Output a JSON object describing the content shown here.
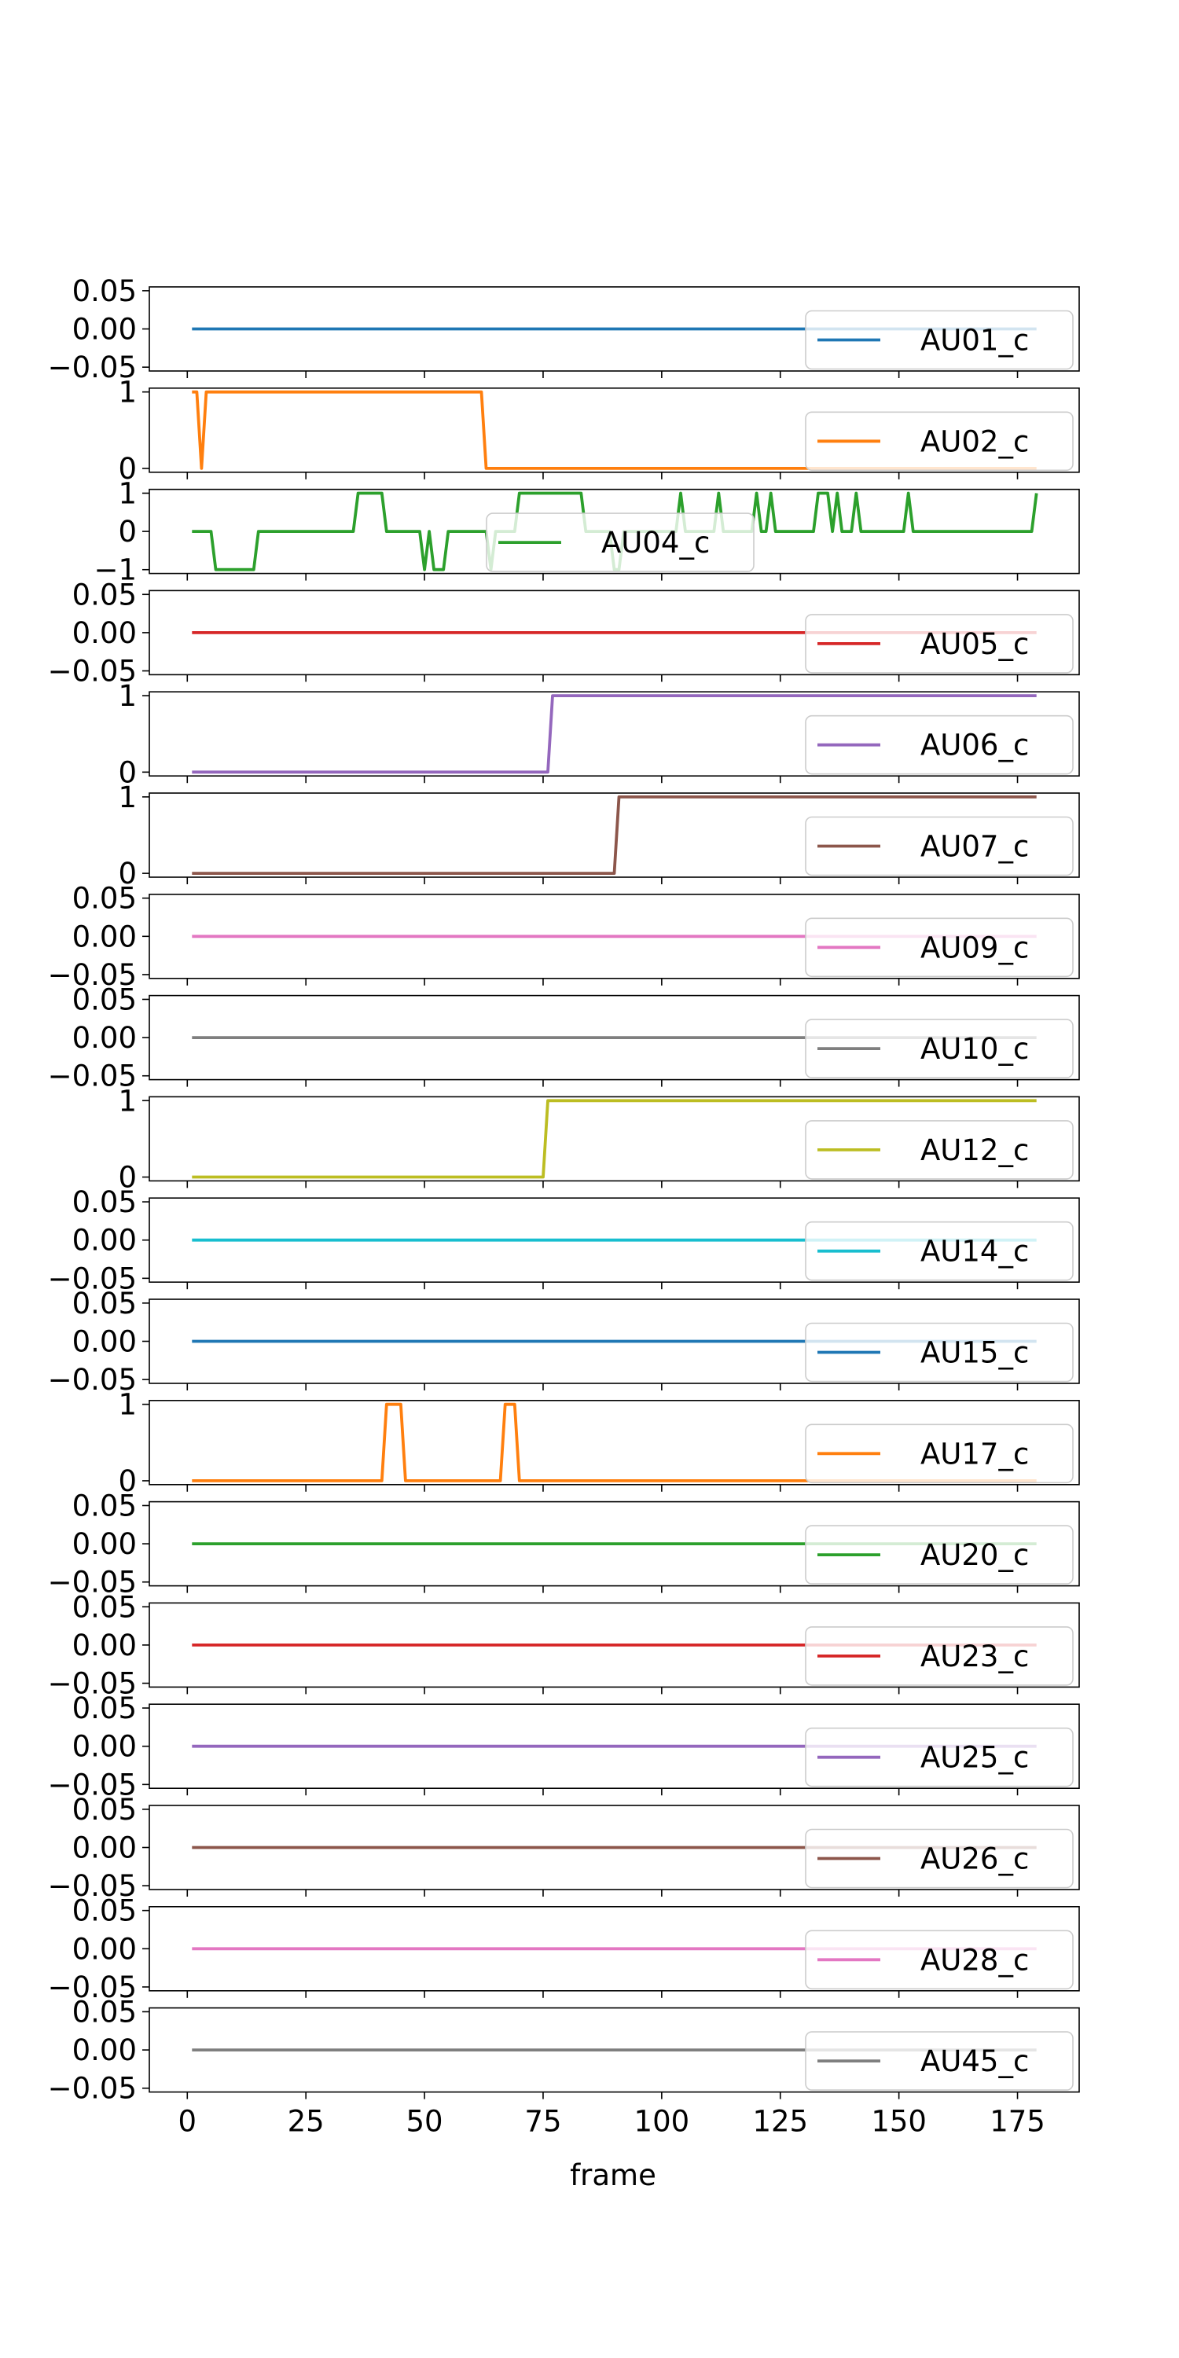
{
  "chart_data": {
    "type": "line",
    "xlabel": "frame",
    "xlim": [
      -8,
      188
    ],
    "xticks": [
      0,
      25,
      50,
      75,
      100,
      125,
      150,
      175
    ],
    "xtick_labels": [
      "0",
      "25",
      "50",
      "75",
      "100",
      "125",
      "150",
      "175"
    ],
    "x_domain": [
      1,
      179
    ],
    "subplots": [
      {
        "name": "AU01_c",
        "color": "#1f77b4",
        "ylim": [
          -0.055,
          0.055
        ],
        "yticks": [
          -0.05,
          0,
          0.05
        ],
        "ytick_labels": [
          "−0.05",
          "0.00",
          "0.05"
        ],
        "legend_loc": "right",
        "points": [
          [
            1,
            0
          ],
          [
            179,
            0
          ]
        ]
      },
      {
        "name": "AU02_c",
        "color": "#ff7f0e",
        "ylim": [
          -0.05,
          1.05
        ],
        "yticks": [
          0,
          1
        ],
        "ytick_labels": [
          "0",
          "1"
        ],
        "legend_loc": "right",
        "points": [
          [
            1,
            1
          ],
          [
            2,
            1
          ],
          [
            3,
            0
          ],
          [
            4,
            1
          ],
          [
            62,
            1
          ],
          [
            63,
            0
          ],
          [
            179,
            0
          ]
        ]
      },
      {
        "name": "AU04_c",
        "color": "#2ca02c",
        "ylim": [
          -1.1,
          1.1
        ],
        "yticks": [
          -1,
          0,
          1
        ],
        "ytick_labels": [
          "−1",
          "0",
          "1"
        ],
        "legend_loc": "center",
        "points": [
          [
            1,
            0
          ],
          [
            5,
            0
          ],
          [
            6,
            -1
          ],
          [
            14,
            -1
          ],
          [
            15,
            0
          ],
          [
            35,
            0
          ],
          [
            36,
            1
          ],
          [
            41,
            1
          ],
          [
            42,
            0
          ],
          [
            49,
            0
          ],
          [
            50,
            -1
          ],
          [
            51,
            0
          ],
          [
            52,
            -1
          ],
          [
            54,
            -1
          ],
          [
            55,
            0
          ],
          [
            63,
            0
          ],
          [
            64,
            -1
          ],
          [
            65,
            0
          ],
          [
            69,
            0
          ],
          [
            70,
            1
          ],
          [
            83,
            1
          ],
          [
            84,
            0
          ],
          [
            89,
            0
          ],
          [
            90,
            -1
          ],
          [
            91,
            -1
          ],
          [
            92,
            0
          ],
          [
            103,
            0
          ],
          [
            104,
            1
          ],
          [
            105,
            0
          ],
          [
            111,
            0
          ],
          [
            112,
            1
          ],
          [
            113,
            0
          ],
          [
            119,
            0
          ],
          [
            120,
            1
          ],
          [
            121,
            0
          ],
          [
            122,
            0
          ],
          [
            123,
            1
          ],
          [
            124,
            0
          ],
          [
            132,
            0
          ],
          [
            133,
            1
          ],
          [
            135,
            1
          ],
          [
            136,
            0
          ],
          [
            137,
            1
          ],
          [
            138,
            0
          ],
          [
            140,
            0
          ],
          [
            141,
            1
          ],
          [
            142,
            0
          ],
          [
            151,
            0
          ],
          [
            152,
            1
          ],
          [
            153,
            0
          ],
          [
            178,
            0
          ],
          [
            179,
            1
          ]
        ]
      },
      {
        "name": "AU05_c",
        "color": "#d62728",
        "ylim": [
          -0.055,
          0.055
        ],
        "yticks": [
          -0.05,
          0,
          0.05
        ],
        "ytick_labels": [
          "−0.05",
          "0.00",
          "0.05"
        ],
        "legend_loc": "right",
        "points": [
          [
            1,
            0
          ],
          [
            179,
            0
          ]
        ]
      },
      {
        "name": "AU06_c",
        "color": "#9467bd",
        "ylim": [
          -0.05,
          1.05
        ],
        "yticks": [
          0,
          1
        ],
        "ytick_labels": [
          "0",
          "1"
        ],
        "legend_loc": "right",
        "points": [
          [
            1,
            0
          ],
          [
            76,
            0
          ],
          [
            77,
            1
          ],
          [
            179,
            1
          ]
        ]
      },
      {
        "name": "AU07_c",
        "color": "#8c564b",
        "ylim": [
          -0.05,
          1.05
        ],
        "yticks": [
          0,
          1
        ],
        "ytick_labels": [
          "0",
          "1"
        ],
        "legend_loc": "right",
        "points": [
          [
            1,
            0
          ],
          [
            90,
            0
          ],
          [
            91,
            1
          ],
          [
            179,
            1
          ]
        ]
      },
      {
        "name": "AU09_c",
        "color": "#e377c2",
        "ylim": [
          -0.055,
          0.055
        ],
        "yticks": [
          -0.05,
          0,
          0.05
        ],
        "ytick_labels": [
          "−0.05",
          "0.00",
          "0.05"
        ],
        "legend_loc": "right",
        "points": [
          [
            1,
            0
          ],
          [
            179,
            0
          ]
        ]
      },
      {
        "name": "AU10_c",
        "color": "#7f7f7f",
        "ylim": [
          -0.055,
          0.055
        ],
        "yticks": [
          -0.05,
          0,
          0.05
        ],
        "ytick_labels": [
          "−0.05",
          "0.00",
          "0.05"
        ],
        "legend_loc": "right",
        "points": [
          [
            1,
            0
          ],
          [
            179,
            0
          ]
        ]
      },
      {
        "name": "AU12_c",
        "color": "#bcbd22",
        "ylim": [
          -0.05,
          1.05
        ],
        "yticks": [
          0,
          1
        ],
        "ytick_labels": [
          "0",
          "1"
        ],
        "legend_loc": "right",
        "points": [
          [
            1,
            0
          ],
          [
            75,
            0
          ],
          [
            76,
            1
          ],
          [
            179,
            1
          ]
        ]
      },
      {
        "name": "AU14_c",
        "color": "#17becf",
        "ylim": [
          -0.055,
          0.055
        ],
        "yticks": [
          -0.05,
          0,
          0.05
        ],
        "ytick_labels": [
          "−0.05",
          "0.00",
          "0.05"
        ],
        "legend_loc": "right",
        "points": [
          [
            1,
            0
          ],
          [
            179,
            0
          ]
        ]
      },
      {
        "name": "AU15_c",
        "color": "#1f77b4",
        "ylim": [
          -0.055,
          0.055
        ],
        "yticks": [
          -0.05,
          0,
          0.05
        ],
        "ytick_labels": [
          "−0.05",
          "0.00",
          "0.05"
        ],
        "legend_loc": "right",
        "points": [
          [
            1,
            0
          ],
          [
            179,
            0
          ]
        ]
      },
      {
        "name": "AU17_c",
        "color": "#ff7f0e",
        "ylim": [
          -0.05,
          1.05
        ],
        "yticks": [
          0,
          1
        ],
        "ytick_labels": [
          "0",
          "1"
        ],
        "legend_loc": "right",
        "points": [
          [
            1,
            0
          ],
          [
            41,
            0
          ],
          [
            42,
            1
          ],
          [
            45,
            1
          ],
          [
            46,
            0
          ],
          [
            66,
            0
          ],
          [
            67,
            1
          ],
          [
            69,
            1
          ],
          [
            70,
            0
          ],
          [
            179,
            0
          ]
        ]
      },
      {
        "name": "AU20_c",
        "color": "#2ca02c",
        "ylim": [
          -0.055,
          0.055
        ],
        "yticks": [
          -0.05,
          0,
          0.05
        ],
        "ytick_labels": [
          "−0.05",
          "0.00",
          "0.05"
        ],
        "legend_loc": "right",
        "points": [
          [
            1,
            0
          ],
          [
            179,
            0
          ]
        ]
      },
      {
        "name": "AU23_c",
        "color": "#d62728",
        "ylim": [
          -0.055,
          0.055
        ],
        "yticks": [
          -0.05,
          0,
          0.05
        ],
        "ytick_labels": [
          "−0.05",
          "0.00",
          "0.05"
        ],
        "legend_loc": "right",
        "points": [
          [
            1,
            0
          ],
          [
            179,
            0
          ]
        ]
      },
      {
        "name": "AU25_c",
        "color": "#9467bd",
        "ylim": [
          -0.055,
          0.055
        ],
        "yticks": [
          -0.05,
          0,
          0.05
        ],
        "ytick_labels": [
          "−0.05",
          "0.00",
          "0.05"
        ],
        "legend_loc": "right",
        "points": [
          [
            1,
            0
          ],
          [
            179,
            0
          ]
        ]
      },
      {
        "name": "AU26_c",
        "color": "#8c564b",
        "ylim": [
          -0.055,
          0.055
        ],
        "yticks": [
          -0.05,
          0,
          0.05
        ],
        "ytick_labels": [
          "−0.05",
          "0.00",
          "0.05"
        ],
        "legend_loc": "right",
        "points": [
          [
            1,
            0
          ],
          [
            179,
            0
          ]
        ]
      },
      {
        "name": "AU28_c",
        "color": "#e377c2",
        "ylim": [
          -0.055,
          0.055
        ],
        "yticks": [
          -0.05,
          0,
          0.05
        ],
        "ytick_labels": [
          "−0.05",
          "0.00",
          "0.05"
        ],
        "legend_loc": "right",
        "points": [
          [
            1,
            0
          ],
          [
            179,
            0
          ]
        ]
      },
      {
        "name": "AU45_c",
        "color": "#7f7f7f",
        "ylim": [
          -0.055,
          0.055
        ],
        "yticks": [
          -0.05,
          0,
          0.05
        ],
        "ytick_labels": [
          "−0.05",
          "0.00",
          "0.05"
        ],
        "legend_loc": "right",
        "points": [
          [
            1,
            0
          ],
          [
            179,
            0
          ]
        ]
      }
    ]
  }
}
